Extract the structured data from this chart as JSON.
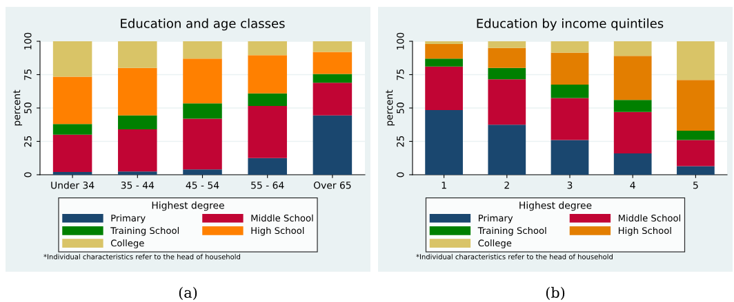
{
  "chart_data": [
    {
      "type": "bar",
      "stacked": true,
      "title": "Education and age classes",
      "ylabel": "percent",
      "categories": [
        "Under 34",
        "35 - 44",
        "45 - 54",
        "55 - 64",
        "Over 65"
      ],
      "series": [
        {
          "name": "Primary",
          "color": "#1a476f",
          "values": [
            2,
            2.5,
            4,
            12.5,
            44.5
          ]
        },
        {
          "name": "Middle School",
          "color": "#c10534",
          "values": [
            28,
            31.5,
            38,
            39,
            24.5
          ]
        },
        {
          "name": "Training School",
          "color": "#008000",
          "values": [
            8,
            10.5,
            11.5,
            9.5,
            6.5
          ]
        },
        {
          "name": "High School",
          "color": "#ff8000",
          "values": [
            35.5,
            35.5,
            33.5,
            28.5,
            16.5
          ]
        },
        {
          "name": "College",
          "color": "#d9c467",
          "values": [
            26.5,
            20,
            13,
            10.5,
            8
          ]
        }
      ],
      "ylim": [
        0,
        100
      ],
      "yticks": [
        0,
        25,
        50,
        75,
        100
      ],
      "grid": "y",
      "legend": "bottom",
      "legend_title": "Highest degree",
      "annotations": [
        "*Individual characteristics refer to the head of household",
        "(a)"
      ]
    },
    {
      "type": "bar",
      "stacked": true,
      "title": "Education by income quintiles",
      "ylabel": "percent",
      "categories": [
        "1",
        "2",
        "3",
        "4",
        "5"
      ],
      "series": [
        {
          "name": "Primary",
          "color": "#1a476f",
          "values": [
            48.5,
            37.5,
            26,
            16,
            6.5
          ]
        },
        {
          "name": "Middle School",
          "color": "#c10534",
          "values": [
            32.5,
            34,
            31.5,
            31,
            19.5
          ]
        },
        {
          "name": "Training School",
          "color": "#008000",
          "values": [
            6,
            8.5,
            10,
            9,
            7
          ]
        },
        {
          "name": "High School",
          "color": "#e37e00",
          "values": [
            11,
            15,
            24,
            33,
            38
          ]
        },
        {
          "name": "College",
          "color": "#d9c467",
          "values": [
            2,
            5,
            8.5,
            11,
            29
          ]
        }
      ],
      "ylim": [
        0,
        100
      ],
      "yticks": [
        0,
        25,
        50,
        75,
        100
      ],
      "grid": "y",
      "legend": "bottom",
      "legend_title": "Highest degree",
      "annotations": [
        "*Individual characteristics refer to the head of household",
        "(b)"
      ]
    }
  ]
}
